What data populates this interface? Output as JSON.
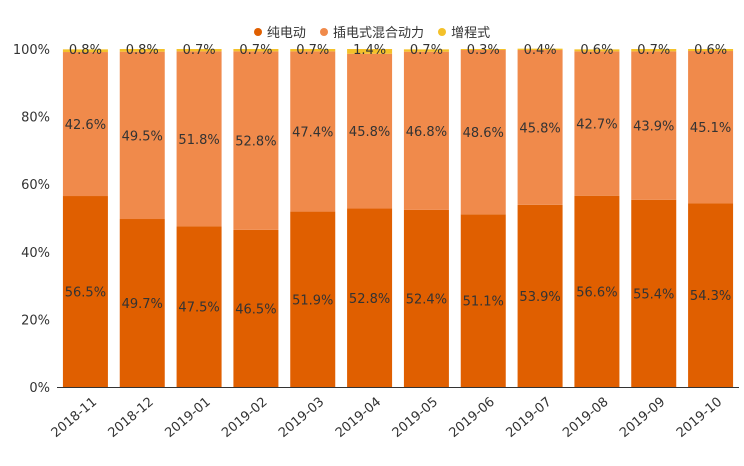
{
  "chart_data": {
    "type": "bar",
    "stacked": "percent",
    "categories": [
      "2018-11",
      "2018-12",
      "2019-01",
      "2019-02",
      "2019-03",
      "2019-04",
      "2019-05",
      "2019-06",
      "2019-07",
      "2019-08",
      "2019-09",
      "2019-10"
    ],
    "series": [
      {
        "name": "纯电动",
        "color": "#e05f00",
        "values": [
          56.5,
          49.7,
          47.5,
          46.5,
          51.9,
          52.8,
          52.4,
          51.1,
          53.9,
          56.6,
          55.4,
          54.3
        ],
        "labels": [
          "56.5%",
          "49.7%",
          "47.5%",
          "46.5%",
          "51.9%",
          "52.8%",
          "52.4%",
          "51.1%",
          "53.9%",
          "56.6%",
          "55.4%",
          "54.3%"
        ]
      },
      {
        "name": "插电式混合动力",
        "color": "#f08a4b",
        "values": [
          42.6,
          49.5,
          51.8,
          52.8,
          47.4,
          45.8,
          46.8,
          48.6,
          45.8,
          42.7,
          43.9,
          45.1
        ],
        "labels": [
          "42.6%",
          "49.5%",
          "51.8%",
          "52.8%",
          "47.4%",
          "45.8%",
          "46.8%",
          "48.6%",
          "45.8%",
          "42.7%",
          "43.9%",
          "45.1%"
        ]
      },
      {
        "name": "增程式",
        "color": "#f4c12a",
        "values": [
          0.8,
          0.8,
          0.7,
          0.7,
          0.7,
          1.4,
          0.7,
          0.3,
          0.4,
          0.6,
          0.7,
          0.6
        ],
        "labels": [
          "0.8%",
          "0.8%",
          "0.7%",
          "0.7%",
          "0.7%",
          "1.4%",
          "0.7%",
          "0.3%",
          "0.4%",
          "0.6%",
          "0.7%",
          "0.6%"
        ]
      }
    ],
    "yticks": [
      "0%",
      "20%",
      "40%",
      "60%",
      "80%",
      "100%"
    ],
    "ylim": [
      0,
      100
    ],
    "legend": "top-center",
    "grid": false,
    "xlabel": "",
    "ylabel": ""
  }
}
